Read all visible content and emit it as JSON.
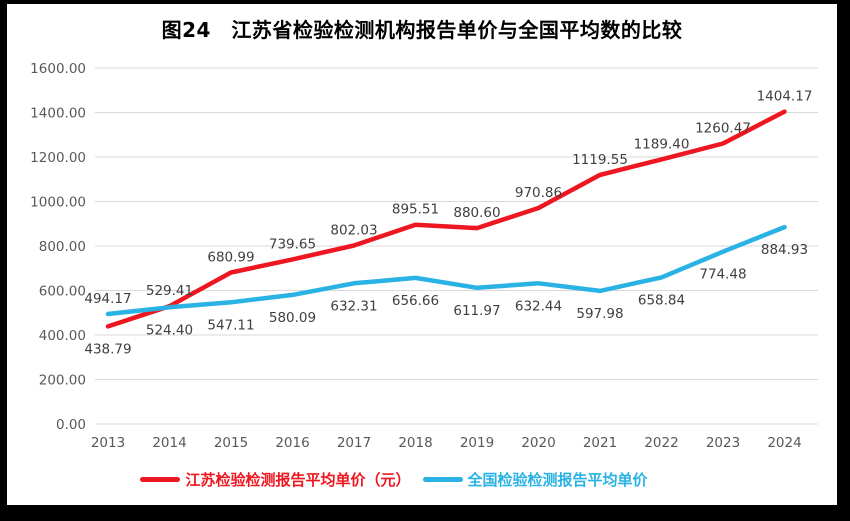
{
  "title": "图24　江苏省检验检测机构报告单价与全国平均数的比较",
  "legend": [
    {
      "label": "江苏检验检测报告平均单价（元）",
      "color": "#ee1620"
    },
    {
      "label": "全国检验检测报告平均单价",
      "color": "#29b2e3"
    }
  ],
  "colors": {
    "grid": "#d9d9d9",
    "axis_text": "#595959",
    "data_label": "#3f3f3f",
    "title_text": "#000000",
    "frame": "#000000",
    "background": "#ffffff"
  },
  "chart_data": {
    "type": "line",
    "title": "图24　江苏省检验检测机构报告单价与全国平均数的比较",
    "categories": [
      "2013",
      "2014",
      "2015",
      "2016",
      "2017",
      "2018",
      "2019",
      "2020",
      "2021",
      "2022",
      "2023",
      "2024"
    ],
    "series": [
      {
        "id": "jiangsu",
        "name": "江苏检验检测报告平均单价（元）",
        "color": "#ee1620",
        "values": [
          438.79,
          529.41,
          680.99,
          739.65,
          802.03,
          895.51,
          880.6,
          970.86,
          1119.55,
          1189.4,
          1260.47,
          1404.17
        ],
        "label_sides": [
          "below",
          "above",
          "above",
          "above",
          "above",
          "above",
          "above",
          "above",
          "above",
          "above",
          "above",
          "above"
        ]
      },
      {
        "id": "national",
        "name": "全国检验检测报告平均单价",
        "color": "#29b2e3",
        "values": [
          494.17,
          524.4,
          547.11,
          580.09,
          632.31,
          656.66,
          611.97,
          632.44,
          597.98,
          658.84,
          774.48,
          884.93
        ],
        "label_sides": [
          "above",
          "below",
          "below",
          "below",
          "below",
          "below",
          "below",
          "below",
          "below",
          "below",
          "below",
          "below"
        ]
      }
    ],
    "xlabel": "",
    "ylabel": "",
    "ylim": [
      0,
      1600
    ],
    "ytick_step": 200,
    "ytick_decimals": 2,
    "grid": true,
    "legend_position": "bottom"
  }
}
